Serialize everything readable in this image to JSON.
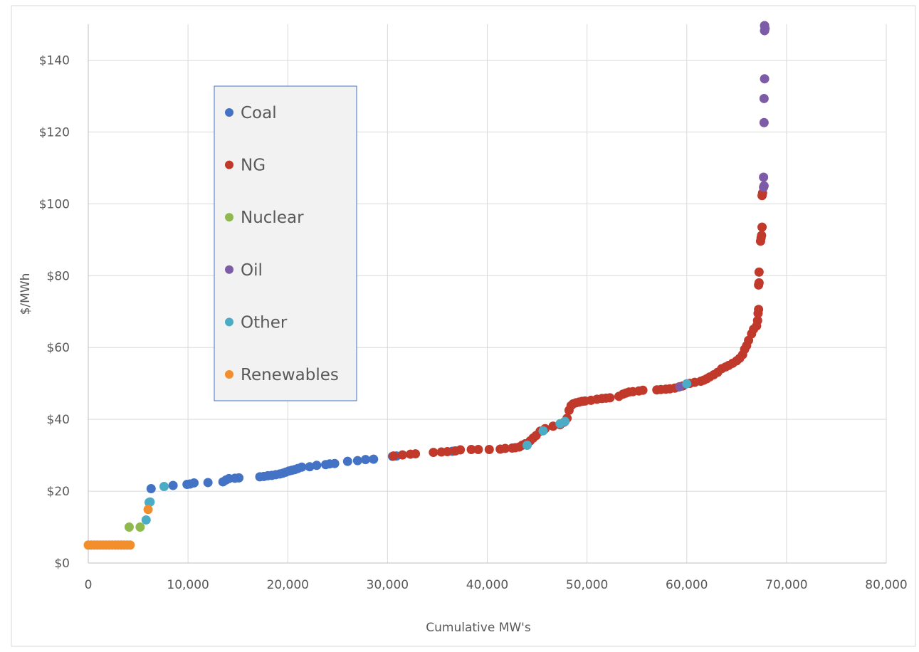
{
  "chart_data": {
    "type": "scatter",
    "title": "",
    "xlabel": "Cumulative MW's",
    "ylabel": "$/MWh",
    "xlim": [
      0,
      80000
    ],
    "ylim": [
      0,
      150
    ],
    "x_ticks": [
      0,
      10000,
      20000,
      30000,
      40000,
      50000,
      60000,
      70000,
      80000
    ],
    "x_tick_labels": [
      "0",
      "10,000",
      "20,000",
      "30,000",
      "40,000",
      "50,000",
      "60,000",
      "70,000",
      "80,000"
    ],
    "y_ticks": [
      0,
      20,
      40,
      60,
      80,
      100,
      120,
      140
    ],
    "y_tick_labels": [
      "$0",
      "$20",
      "$40",
      "$60",
      "$80",
      "$100",
      "$120",
      "$140"
    ],
    "grid": true,
    "legend_position": "upper-left-inside",
    "series": [
      {
        "name": "Coal",
        "color": "#4472c4",
        "points": [
          [
            6300,
            20.7
          ],
          [
            8500,
            21.6
          ],
          [
            9900,
            21.9
          ],
          [
            10200,
            22.0
          ],
          [
            10600,
            22.3
          ],
          [
            12000,
            22.4
          ],
          [
            13500,
            22.6
          ],
          [
            13800,
            23.1
          ],
          [
            14100,
            23.5
          ],
          [
            14700,
            23.6
          ],
          [
            15100,
            23.7
          ],
          [
            17200,
            24.0
          ],
          [
            17600,
            24.1
          ],
          [
            18000,
            24.3
          ],
          [
            18400,
            24.4
          ],
          [
            18800,
            24.6
          ],
          [
            19200,
            24.8
          ],
          [
            19500,
            25.0
          ],
          [
            19800,
            25.3
          ],
          [
            20100,
            25.6
          ],
          [
            20400,
            25.8
          ],
          [
            20700,
            26.0
          ],
          [
            21000,
            26.3
          ],
          [
            21400,
            26.7
          ],
          [
            22200,
            26.8
          ],
          [
            22900,
            27.2
          ],
          [
            23800,
            27.4
          ],
          [
            24200,
            27.6
          ],
          [
            24700,
            27.7
          ],
          [
            26000,
            28.3
          ],
          [
            27000,
            28.5
          ],
          [
            27800,
            28.8
          ],
          [
            28600,
            28.9
          ],
          [
            30500,
            29.7
          ],
          [
            30900,
            29.8
          ],
          [
            36500,
            31.1
          ]
        ]
      },
      {
        "name": "NG",
        "color": "#c0392b",
        "points": [
          [
            30600,
            29.8
          ],
          [
            31500,
            30.1
          ],
          [
            32300,
            30.3
          ],
          [
            32800,
            30.4
          ],
          [
            34600,
            30.8
          ],
          [
            35400,
            30.9
          ],
          [
            36000,
            31.0
          ],
          [
            36800,
            31.2
          ],
          [
            37300,
            31.5
          ],
          [
            38400,
            31.6
          ],
          [
            39100,
            31.6
          ],
          [
            40200,
            31.6
          ],
          [
            41300,
            31.7
          ],
          [
            41800,
            31.9
          ],
          [
            42500,
            32.0
          ],
          [
            42800,
            32.1
          ],
          [
            43200,
            32.3
          ],
          [
            43500,
            32.8
          ],
          [
            43800,
            33.2
          ],
          [
            44300,
            34.0
          ],
          [
            44600,
            34.8
          ],
          [
            44900,
            35.5
          ],
          [
            45300,
            36.7
          ],
          [
            45800,
            37.4
          ],
          [
            46600,
            38.1
          ],
          [
            47300,
            38.5
          ],
          [
            47700,
            39.2
          ],
          [
            48000,
            40.3
          ],
          [
            48200,
            42.5
          ],
          [
            48400,
            43.8
          ],
          [
            48600,
            44.3
          ],
          [
            48900,
            44.6
          ],
          [
            49200,
            44.8
          ],
          [
            49500,
            45.0
          ],
          [
            49800,
            45.1
          ],
          [
            50400,
            45.3
          ],
          [
            51000,
            45.6
          ],
          [
            51500,
            45.8
          ],
          [
            51900,
            45.9
          ],
          [
            52300,
            46.0
          ],
          [
            53200,
            46.4
          ],
          [
            53600,
            47.0
          ],
          [
            53900,
            47.3
          ],
          [
            54200,
            47.6
          ],
          [
            54600,
            47.7
          ],
          [
            55200,
            47.9
          ],
          [
            55600,
            48.1
          ],
          [
            57000,
            48.2
          ],
          [
            57400,
            48.3
          ],
          [
            57900,
            48.4
          ],
          [
            58300,
            48.5
          ],
          [
            58800,
            48.7
          ],
          [
            59200,
            49.0
          ],
          [
            59600,
            49.3
          ],
          [
            60300,
            50.0
          ],
          [
            60800,
            50.3
          ],
          [
            61400,
            50.6
          ],
          [
            61700,
            50.9
          ],
          [
            62000,
            51.3
          ],
          [
            62300,
            51.8
          ],
          [
            62700,
            52.4
          ],
          [
            63100,
            53.1
          ],
          [
            63500,
            54.1
          ],
          [
            63900,
            54.6
          ],
          [
            64200,
            55.0
          ],
          [
            64600,
            55.6
          ],
          [
            65000,
            56.3
          ],
          [
            65300,
            57.0
          ],
          [
            65600,
            58.0
          ],
          [
            65800,
            59.5
          ],
          [
            66000,
            60.5
          ],
          [
            66200,
            62.0
          ],
          [
            66500,
            63.8
          ],
          [
            66700,
            65.1
          ],
          [
            67000,
            66.0
          ],
          [
            67100,
            67.5
          ],
          [
            67150,
            69.5
          ],
          [
            67200,
            70.6
          ],
          [
            67200,
            77.4
          ],
          [
            67250,
            78.0
          ],
          [
            67250,
            81.0
          ],
          [
            67400,
            89.6
          ],
          [
            67450,
            90.5
          ],
          [
            67500,
            91.2
          ],
          [
            67550,
            93.5
          ],
          [
            67550,
            102.3
          ],
          [
            67600,
            103.0
          ]
        ]
      },
      {
        "name": "Nuclear",
        "color": "#8fb94e",
        "points": [
          [
            4100,
            10.0
          ],
          [
            5200,
            10.0
          ]
        ]
      },
      {
        "name": "Oil",
        "color": "#7e5ba6",
        "points": [
          [
            59300,
            49.1
          ],
          [
            67700,
            104.6
          ],
          [
            67750,
            105.0
          ],
          [
            67700,
            107.4
          ],
          [
            67750,
            122.6
          ],
          [
            67750,
            129.3
          ],
          [
            67800,
            134.8
          ],
          [
            67800,
            148.2
          ],
          [
            67850,
            148.8
          ],
          [
            67800,
            149.6
          ]
        ]
      },
      {
        "name": "Other",
        "color": "#4bacc6",
        "points": [
          [
            5800,
            12.0
          ],
          [
            6100,
            16.9
          ],
          [
            6200,
            17.0
          ],
          [
            7600,
            21.3
          ],
          [
            44000,
            32.8
          ],
          [
            45600,
            36.8
          ],
          [
            47300,
            38.8
          ],
          [
            47800,
            39.4
          ],
          [
            60000,
            49.9
          ]
        ]
      },
      {
        "name": "Renewables",
        "color": "#f28e2b",
        "points": [
          [
            0,
            5.0
          ],
          [
            300,
            5.0
          ],
          [
            600,
            5.0
          ],
          [
            900,
            5.0
          ],
          [
            1200,
            5.0
          ],
          [
            1500,
            5.0
          ],
          [
            1800,
            5.0
          ],
          [
            2100,
            5.0
          ],
          [
            2400,
            5.0
          ],
          [
            2700,
            5.0
          ],
          [
            3000,
            5.0
          ],
          [
            3300,
            5.0
          ],
          [
            3600,
            5.0
          ],
          [
            3900,
            5.0
          ],
          [
            4200,
            5.0
          ],
          [
            6000,
            14.9
          ]
        ]
      }
    ]
  }
}
